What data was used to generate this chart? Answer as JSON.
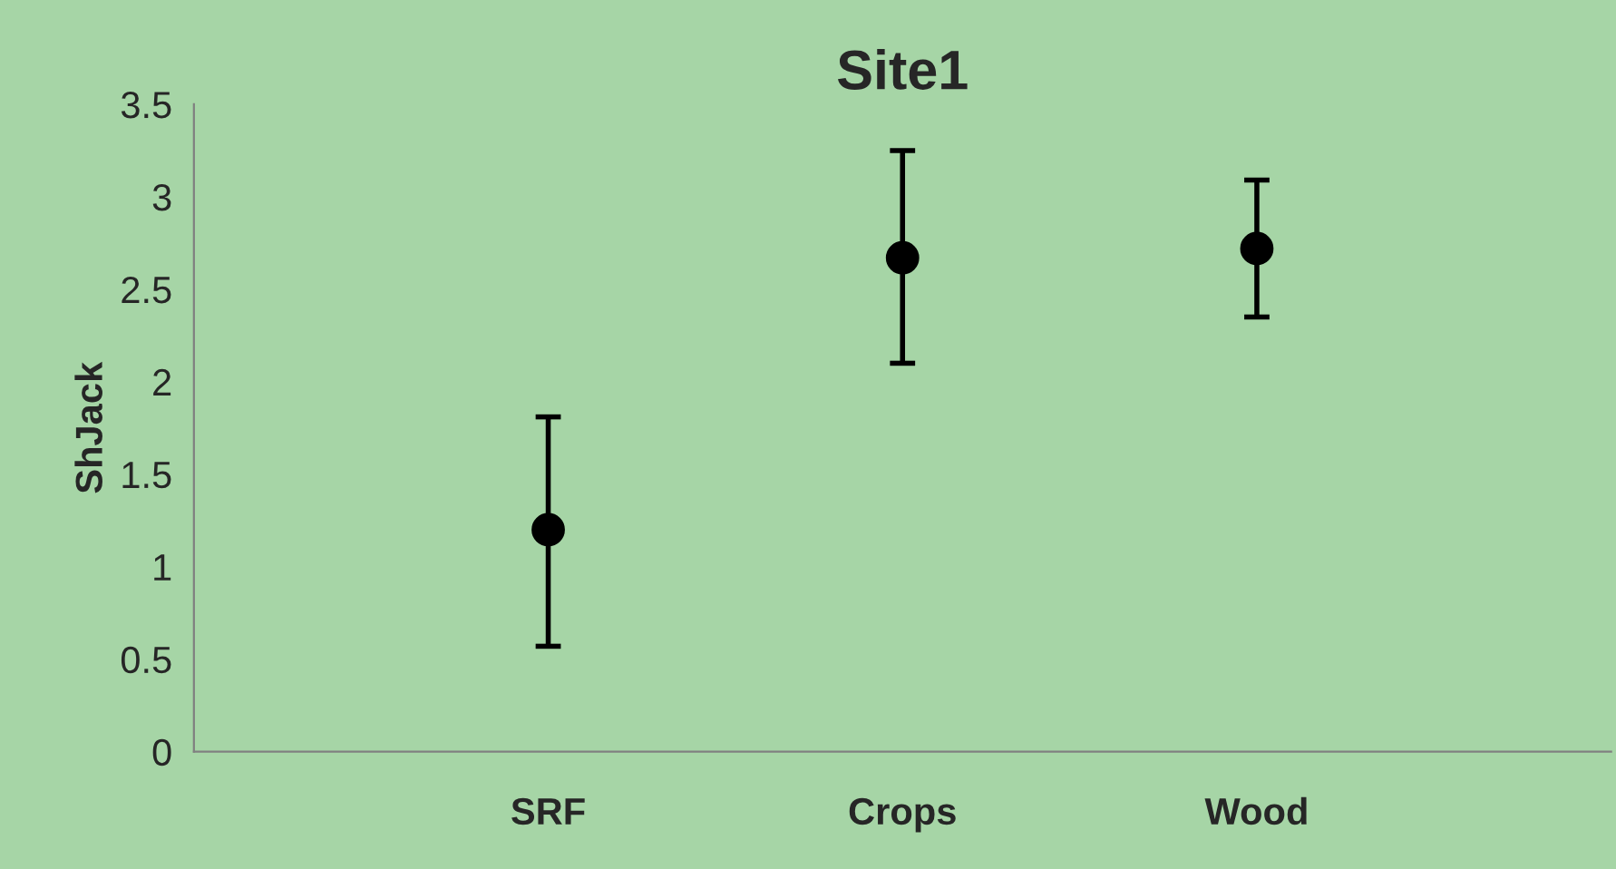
{
  "chart_data": {
    "type": "scatter",
    "title": "Site1",
    "ylabel": "ShJack",
    "categories": [
      null,
      "SRF",
      "Crops",
      "Wood",
      null
    ],
    "values": [
      null,
      1.2,
      2.67,
      2.72,
      null
    ],
    "errors": [
      null,
      [
        0.57,
        1.81
      ],
      [
        2.1,
        3.25
      ],
      [
        2.35,
        3.09
      ],
      null
    ],
    "color": "#000000",
    "marker": "circle",
    "grid": false,
    "legend": false,
    "ylim": [
      0,
      3.5
    ],
    "yticks": [
      0,
      0.5,
      1,
      1.5,
      2,
      2.5,
      3,
      3.5
    ]
  }
}
